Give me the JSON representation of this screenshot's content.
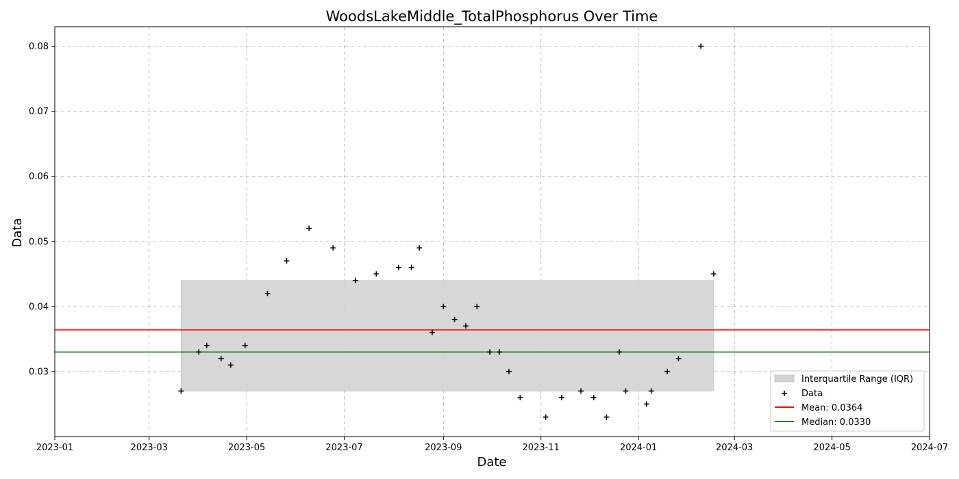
{
  "chart_data": {
    "type": "scatter",
    "title": "WoodsLakeMiddle_TotalPhosphorus Over Time",
    "xlabel": "Date",
    "ylabel": "Data",
    "xlim": [
      "2023-01-01",
      "2024-07-01"
    ],
    "ylim": [
      0.02,
      0.083
    ],
    "x_ticks": [
      "2023-01",
      "2023-03",
      "2023-05",
      "2023-07",
      "2023-09",
      "2023-11",
      "2024-01",
      "2024-03",
      "2024-05",
      "2024-07"
    ],
    "y_ticks": [
      0.03,
      0.04,
      0.05,
      0.06,
      0.07,
      0.08
    ],
    "grid": true,
    "legend_position": "bottom-right",
    "series": [
      {
        "name": "Data",
        "marker": "+",
        "color": "#000000",
        "points": [
          {
            "x": "2023-03-21",
            "y": 0.027
          },
          {
            "x": "2023-04-01",
            "y": 0.033
          },
          {
            "x": "2023-04-06",
            "y": 0.034
          },
          {
            "x": "2023-04-15",
            "y": 0.032
          },
          {
            "x": "2023-04-21",
            "y": 0.031
          },
          {
            "x": "2023-04-30",
            "y": 0.034
          },
          {
            "x": "2023-05-14",
            "y": 0.042
          },
          {
            "x": "2023-05-26",
            "y": 0.047
          },
          {
            "x": "2023-06-09",
            "y": 0.052
          },
          {
            "x": "2023-06-24",
            "y": 0.049
          },
          {
            "x": "2023-07-08",
            "y": 0.044
          },
          {
            "x": "2023-07-21",
            "y": 0.045
          },
          {
            "x": "2023-08-04",
            "y": 0.046
          },
          {
            "x": "2023-08-12",
            "y": 0.046
          },
          {
            "x": "2023-08-17",
            "y": 0.049
          },
          {
            "x": "2023-08-25",
            "y": 0.036
          },
          {
            "x": "2023-09-01",
            "y": 0.04
          },
          {
            "x": "2023-09-08",
            "y": 0.038
          },
          {
            "x": "2023-09-15",
            "y": 0.037
          },
          {
            "x": "2023-09-22",
            "y": 0.04
          },
          {
            "x": "2023-09-30",
            "y": 0.033
          },
          {
            "x": "2023-10-06",
            "y": 0.033
          },
          {
            "x": "2023-10-12",
            "y": 0.03
          },
          {
            "x": "2023-10-19",
            "y": 0.026
          },
          {
            "x": "2023-11-04",
            "y": 0.023
          },
          {
            "x": "2023-11-14",
            "y": 0.026
          },
          {
            "x": "2023-11-26",
            "y": 0.027
          },
          {
            "x": "2023-12-04",
            "y": 0.026
          },
          {
            "x": "2023-12-12",
            "y": 0.023
          },
          {
            "x": "2023-12-20",
            "y": 0.033
          },
          {
            "x": "2023-12-24",
            "y": 0.027
          },
          {
            "x": "2024-01-06",
            "y": 0.025
          },
          {
            "x": "2024-01-09",
            "y": 0.027
          },
          {
            "x": "2024-01-19",
            "y": 0.03
          },
          {
            "x": "2024-01-26",
            "y": 0.032
          },
          {
            "x": "2024-02-09",
            "y": 0.08
          },
          {
            "x": "2024-02-17",
            "y": 0.045
          }
        ]
      }
    ],
    "iqr": {
      "name": "Interquartile Range (IQR)",
      "x_start": "2023-03-21",
      "x_end": "2024-02-17",
      "y_low": 0.027,
      "y_high": 0.044,
      "color": "#d3d3d3"
    },
    "mean": {
      "name": "Mean: 0.0364",
      "value": 0.0364,
      "color": "#ff0000"
    },
    "median": {
      "name": "Median: 0.0330",
      "value": 0.033,
      "color": "#008000"
    }
  }
}
